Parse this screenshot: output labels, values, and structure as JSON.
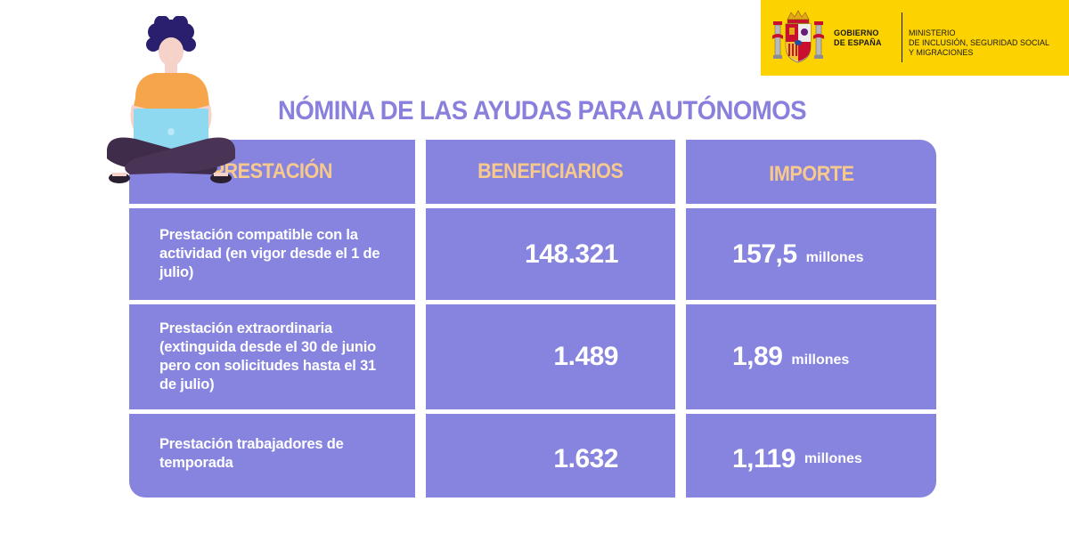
{
  "government": {
    "line1": "GOBIERNO",
    "line2": "DE ESPAÑA",
    "ministry_line1": "MINISTERIO",
    "ministry_line2": "DE INCLUSIÓN, SEGURIDAD SOCIAL",
    "ministry_line3": "Y MIGRACIONES",
    "banner_color": "#fcd200"
  },
  "title": "NÓMINA DE LAS AYUDAS PARA AUTÓNOMOS",
  "table": {
    "headers": [
      "PRESTACIÓN",
      "BENEFICIARIOS",
      "IMPORTE"
    ],
    "rows": [
      {
        "prestacion": "Prestación compatible con la actividad (en vigor desde el 1 de julio)",
        "beneficiarios": "148.321",
        "importe": "157,5",
        "unidad": "millones"
      },
      {
        "prestacion": "Prestación extraordinaria (extinguida desde el 30 de junio pero con solicitudes hasta el 31 de julio)",
        "beneficiarios": "1.489",
        "importe": "1,89",
        "unidad": "millones"
      },
      {
        "prestacion": "Prestación trabajadores de temporada",
        "beneficiarios": "1.632",
        "importe": "1,119",
        "unidad": "millones"
      }
    ]
  },
  "colors": {
    "title": "#8880dc",
    "cell": "#8684df",
    "header_text": "#f8c98c"
  },
  "icons": {
    "coat_of_arms": "spain-coat-of-arms-icon",
    "illustration": "person-with-laptop-icon"
  }
}
